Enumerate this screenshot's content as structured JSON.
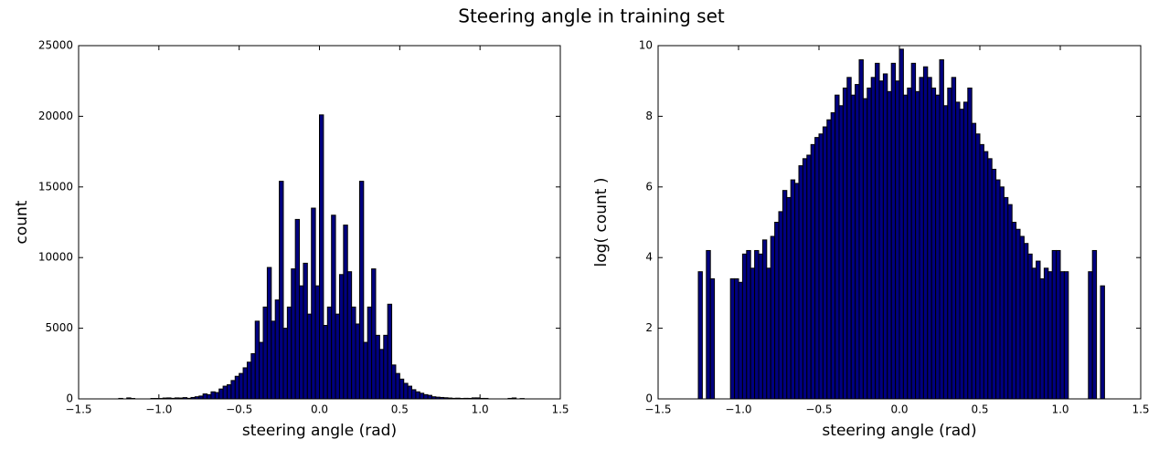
{
  "title": "Steering angle in training set",
  "chart_data": [
    {
      "type": "histogram",
      "xlabel": "steering angle (rad)",
      "ylabel": "count",
      "color": "#000080",
      "xlim": [
        -1.5,
        1.5
      ],
      "xticks": [
        {
          "value": -1.5,
          "label": "−1.5"
        },
        {
          "value": -1.0,
          "label": "−1.0"
        },
        {
          "value": -0.5,
          "label": "−0.5"
        },
        {
          "value": 0,
          "label": "0.0"
        },
        {
          "value": 0.5,
          "label": "0.5"
        },
        {
          "value": 1.0,
          "label": "1.0"
        },
        {
          "value": 1.5,
          "label": "1.5"
        }
      ],
      "ylim": [
        0,
        25000
      ],
      "yticks": [
        0,
        5000,
        10000,
        15000,
        20000,
        25000
      ],
      "bins": [
        -1.3,
        -1.275,
        -1.25,
        -1.225,
        -1.2,
        -1.175,
        -1.15,
        -1.125,
        -1.1,
        -1.075,
        -1.05,
        -1.025,
        -1.0,
        -0.975,
        -0.95,
        -0.925,
        -0.9,
        -0.875,
        -0.85,
        -0.825,
        -0.8,
        -0.775,
        -0.75,
        -0.725,
        -0.7,
        -0.675,
        -0.65,
        -0.625,
        -0.6,
        -0.575,
        -0.55,
        -0.525,
        -0.5,
        -0.475,
        -0.45,
        -0.425,
        -0.4,
        -0.375,
        -0.35,
        -0.325,
        -0.3,
        -0.275,
        -0.25,
        -0.225,
        -0.2,
        -0.175,
        -0.15,
        -0.125,
        -0.1,
        -0.075,
        -0.05,
        -0.025,
        0.0,
        0.025,
        0.05,
        0.075,
        0.1,
        0.125,
        0.15,
        0.175,
        0.2,
        0.225,
        0.25,
        0.275,
        0.3,
        0.325,
        0.35,
        0.375,
        0.4,
        0.425,
        0.45,
        0.475,
        0.5,
        0.525,
        0.55,
        0.575,
        0.6,
        0.625,
        0.65,
        0.675,
        0.7,
        0.725,
        0.75,
        0.775,
        0.8,
        0.825,
        0.85,
        0.875,
        0.9,
        0.925,
        0.95,
        0.975,
        1.0,
        1.025,
        1.05,
        1.075,
        1.1,
        1.125,
        1.15,
        1.175,
        1.2,
        1.225,
        1.25,
        1.275,
        1.3
      ],
      "values": [
        0,
        0,
        35,
        0,
        70,
        30,
        0,
        0,
        0,
        0,
        30,
        30,
        28,
        60,
        70,
        40,
        70,
        60,
        90,
        40,
        100,
        150,
        200,
        350,
        300,
        500,
        450,
        700,
        900,
        1000,
        1300,
        1600,
        1800,
        2200,
        2600,
        3200,
        5500,
        4000,
        6500,
        9300,
        5500,
        7000,
        15400,
        5000,
        6500,
        9200,
        12700,
        8000,
        9600,
        6000,
        13500,
        8000,
        20100,
        5200,
        6500,
        13000,
        6000,
        8800,
        12300,
        9000,
        6500,
        5300,
        15400,
        4000,
        6500,
        9200,
        4500,
        3500,
        4500,
        6700,
        2400,
        1800,
        1400,
        1100,
        900,
        650,
        500,
        400,
        300,
        250,
        150,
        120,
        100,
        80,
        60,
        40,
        50,
        30,
        40,
        35,
        70,
        70,
        35,
        35,
        0,
        0,
        0,
        0,
        0,
        35,
        65,
        0,
        25,
        0
      ]
    },
    {
      "type": "histogram",
      "xlabel": "steering angle (rad)",
      "ylabel": "log( count )",
      "color": "#000080",
      "xlim": [
        -1.5,
        1.5
      ],
      "xticks": [
        {
          "value": -1.5,
          "label": "−1.5"
        },
        {
          "value": -1.0,
          "label": "−1.0"
        },
        {
          "value": -0.5,
          "label": "−0.5"
        },
        {
          "value": 0,
          "label": "0.0"
        },
        {
          "value": 0.5,
          "label": "0.5"
        },
        {
          "value": 1.0,
          "label": "1.0"
        },
        {
          "value": 1.5,
          "label": "1.5"
        }
      ],
      "ylim": [
        0,
        10
      ],
      "yticks": [
        0,
        2,
        4,
        6,
        8,
        10
      ],
      "bins": [
        -1.3,
        -1.275,
        -1.25,
        -1.225,
        -1.2,
        -1.175,
        -1.15,
        -1.125,
        -1.1,
        -1.075,
        -1.05,
        -1.025,
        -1.0,
        -0.975,
        -0.95,
        -0.925,
        -0.9,
        -0.875,
        -0.85,
        -0.825,
        -0.8,
        -0.775,
        -0.75,
        -0.725,
        -0.7,
        -0.675,
        -0.65,
        -0.625,
        -0.6,
        -0.575,
        -0.55,
        -0.525,
        -0.5,
        -0.475,
        -0.45,
        -0.425,
        -0.4,
        -0.375,
        -0.35,
        -0.325,
        -0.3,
        -0.275,
        -0.25,
        -0.225,
        -0.2,
        -0.175,
        -0.15,
        -0.125,
        -0.1,
        -0.075,
        -0.05,
        -0.025,
        0.0,
        0.025,
        0.05,
        0.075,
        0.1,
        0.125,
        0.15,
        0.175,
        0.2,
        0.225,
        0.25,
        0.275,
        0.3,
        0.325,
        0.35,
        0.375,
        0.4,
        0.425,
        0.45,
        0.475,
        0.5,
        0.525,
        0.55,
        0.575,
        0.6,
        0.625,
        0.65,
        0.675,
        0.7,
        0.725,
        0.75,
        0.775,
        0.8,
        0.825,
        0.85,
        0.875,
        0.9,
        0.925,
        0.95,
        0.975,
        1.0,
        1.025,
        1.05,
        1.075,
        1.1,
        1.125,
        1.15,
        1.175,
        1.2,
        1.225,
        1.25,
        1.275,
        1.3
      ],
      "values": [
        0,
        0,
        3.6,
        0,
        4.2,
        3.4,
        0,
        0,
        0,
        0,
        3.4,
        3.4,
        3.3,
        4.1,
        4.2,
        3.7,
        4.2,
        4.1,
        4.5,
        3.7,
        4.6,
        5.0,
        5.3,
        5.9,
        5.7,
        6.2,
        6.1,
        6.6,
        6.8,
        6.9,
        7.2,
        7.4,
        7.5,
        7.7,
        7.9,
        8.1,
        8.6,
        8.3,
        8.8,
        9.1,
        8.6,
        8.9,
        9.6,
        8.5,
        8.8,
        9.1,
        9.5,
        9.0,
        9.2,
        8.7,
        9.5,
        9.0,
        9.9,
        8.6,
        8.8,
        9.5,
        8.7,
        9.1,
        9.4,
        9.1,
        8.8,
        8.6,
        9.6,
        8.3,
        8.8,
        9.1,
        8.4,
        8.2,
        8.4,
        8.8,
        7.8,
        7.5,
        7.2,
        7.0,
        6.8,
        6.5,
        6.2,
        6.0,
        5.7,
        5.5,
        5.0,
        4.8,
        4.6,
        4.4,
        4.1,
        3.7,
        3.9,
        3.4,
        3.7,
        3.6,
        4.2,
        4.2,
        3.6,
        3.6,
        0,
        0,
        0,
        0,
        0,
        3.6,
        4.2,
        0,
        3.2,
        0
      ]
    }
  ]
}
